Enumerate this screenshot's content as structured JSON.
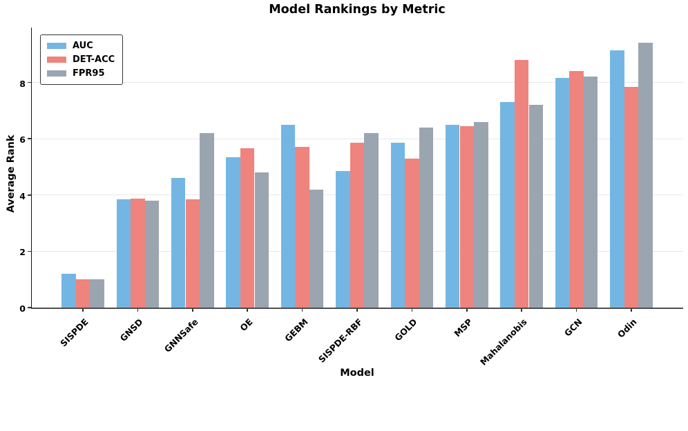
{
  "chart_data": {
    "type": "bar",
    "title": "Model Rankings by Metric",
    "xlabel": "Model",
    "ylabel": "Average Rank",
    "categories": [
      "SISPDE",
      "GNSD",
      "GNNSafe",
      "OE",
      "GEBM",
      "SISPDE-RBF",
      "GOLD",
      "MSP",
      "Mahalanobis",
      "GCN",
      "Odin"
    ],
    "series": [
      {
        "name": "AUC",
        "color": "#74b6e3",
        "values": [
          1.2,
          3.85,
          4.6,
          5.35,
          6.5,
          4.85,
          5.85,
          6.5,
          7.3,
          8.15,
          9.15
        ]
      },
      {
        "name": "DET-ACC",
        "color": "#ef837d",
        "values": [
          1.0,
          3.88,
          3.85,
          5.65,
          5.7,
          5.85,
          5.3,
          6.45,
          8.8,
          8.4,
          7.85
        ]
      },
      {
        "name": "FPR95",
        "color": "#9aa5b0",
        "values": [
          1.0,
          3.8,
          6.2,
          4.8,
          4.2,
          6.2,
          6.4,
          6.6,
          7.2,
          8.2,
          9.4
        ]
      }
    ],
    "ylim": [
      0,
      10
    ],
    "yticks": [
      0,
      2,
      4,
      6,
      8
    ],
    "grid": "horizontal",
    "legend_position": "upper left"
  }
}
